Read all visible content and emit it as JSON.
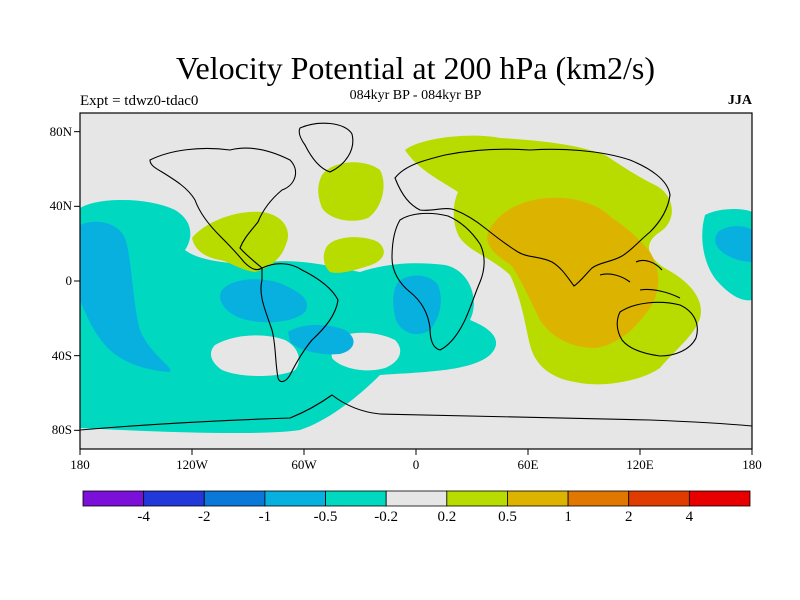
{
  "title": "Velocity Potential at 200 hPa (km2/s)",
  "subtitle": "084kyr BP - 084kyr BP",
  "experiment": "Expt = tdwz0-tdac0",
  "season": "JJA",
  "map": {
    "projection": "cylindrical equidistant",
    "lon_range": [
      -180,
      180
    ],
    "lat_range": [
      -90,
      90
    ],
    "background_color": "#e6e6e6",
    "coastline_color": "#000000",
    "lat_ticks": [
      {
        "lat": 80,
        "label": "80N"
      },
      {
        "lat": 40,
        "label": "40N"
      },
      {
        "lat": 0,
        "label": "0"
      },
      {
        "lat": -40,
        "label": "40S"
      },
      {
        "lat": -80,
        "label": "80S"
      }
    ],
    "lon_ticks": [
      {
        "lon": -180,
        "label": "180"
      },
      {
        "lon": -120,
        "label": "120W"
      },
      {
        "lon": -60,
        "label": "60W"
      },
      {
        "lon": 0,
        "label": "0"
      },
      {
        "lon": 60,
        "label": "60E"
      },
      {
        "lon": 120,
        "label": "120E"
      },
      {
        "lon": 180,
        "label": "180"
      }
    ]
  },
  "colorbar": {
    "colors": [
      "#7b10d8",
      "#2238d8",
      "#0a78d8",
      "#08b0e0",
      "#00d8c0",
      "#e6e6e6",
      "#b8dc00",
      "#dcb400",
      "#e07800",
      "#e03c00",
      "#e80000"
    ],
    "labels": [
      "-4",
      "-2",
      "-1",
      "-0.5",
      "-0.2",
      "0.2",
      "0.5",
      "1",
      "2",
      "4"
    ]
  },
  "regions": [
    {
      "name": "pacific-negative-region",
      "level": "-0.5 to -0.2",
      "color": "#00d8c0"
    },
    {
      "name": "central-pacific-core-region",
      "level": "-1 to -0.5",
      "color": "#08b0e0"
    },
    {
      "name": "asia-positive-region",
      "level": "0.2 to 0.5",
      "color": "#b8dc00"
    },
    {
      "name": "indian-ocean-core-region",
      "level": "0.5 to 1",
      "color": "#dcb400"
    }
  ]
}
